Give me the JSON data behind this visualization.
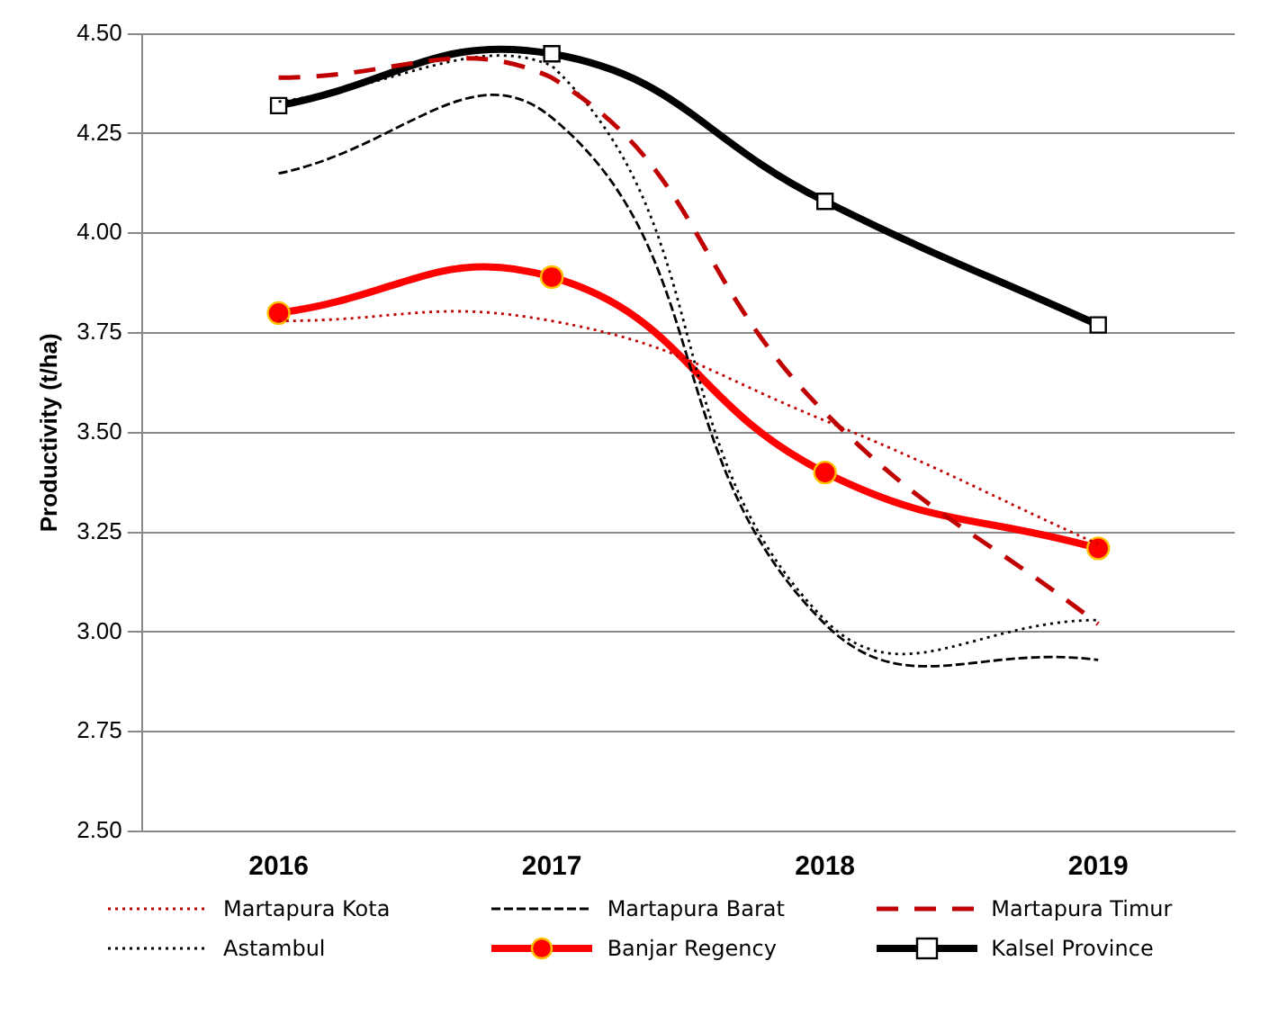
{
  "chart_data": {
    "type": "line",
    "ylabel": "Productivity (t/ha)",
    "categories": [
      "2016",
      "2017",
      "2018",
      "2019"
    ],
    "ylim": [
      2.5,
      4.5
    ],
    "yticks": [
      {
        "value": 2.5,
        "label": "2.50"
      },
      {
        "value": 2.75,
        "label": "2.75"
      },
      {
        "value": 3,
        "label": "3.00"
      },
      {
        "value": 3.25,
        "label": "3.25"
      },
      {
        "value": 3.5,
        "label": "3.50"
      },
      {
        "value": 3.75,
        "label": "3.75"
      },
      {
        "value": 4,
        "label": "4.00"
      },
      {
        "value": 4.25,
        "label": "4.25"
      },
      {
        "value": 4.5,
        "label": "4.50"
      }
    ],
    "grid": "y",
    "legend": "bottom",
    "series": [
      {
        "name": "Martapura Kota",
        "color": "#c00000",
        "values": [
          3.78,
          3.78,
          3.53,
          3.22
        ],
        "line_style": "dotted",
        "marker": "none"
      },
      {
        "name": "Martapura Barat",
        "color": "#000000",
        "values": [
          4.15,
          4.29,
          3.02,
          2.93
        ],
        "line_style": "dashed",
        "marker": "none"
      },
      {
        "name": "Martapura Timur",
        "color": "#c00000",
        "values": [
          4.39,
          4.39,
          3.55,
          3.02
        ],
        "line_style": "dashed",
        "marker": "none"
      },
      {
        "name": "Astambul",
        "color": "#000000",
        "values": [
          4.33,
          4.42,
          3.03,
          3.03
        ],
        "line_style": "dotted",
        "marker": "none"
      },
      {
        "name": "Banjar Regency",
        "color": "#ff0000",
        "values": [
          3.8,
          3.89,
          3.4,
          3.21
        ],
        "line_style": "solid",
        "marker": "circle"
      },
      {
        "name": "Kalsel Province",
        "color": "#000000",
        "values": [
          4.32,
          4.45,
          4.08,
          3.77
        ],
        "line_style": "solid",
        "marker": "square"
      }
    ]
  }
}
